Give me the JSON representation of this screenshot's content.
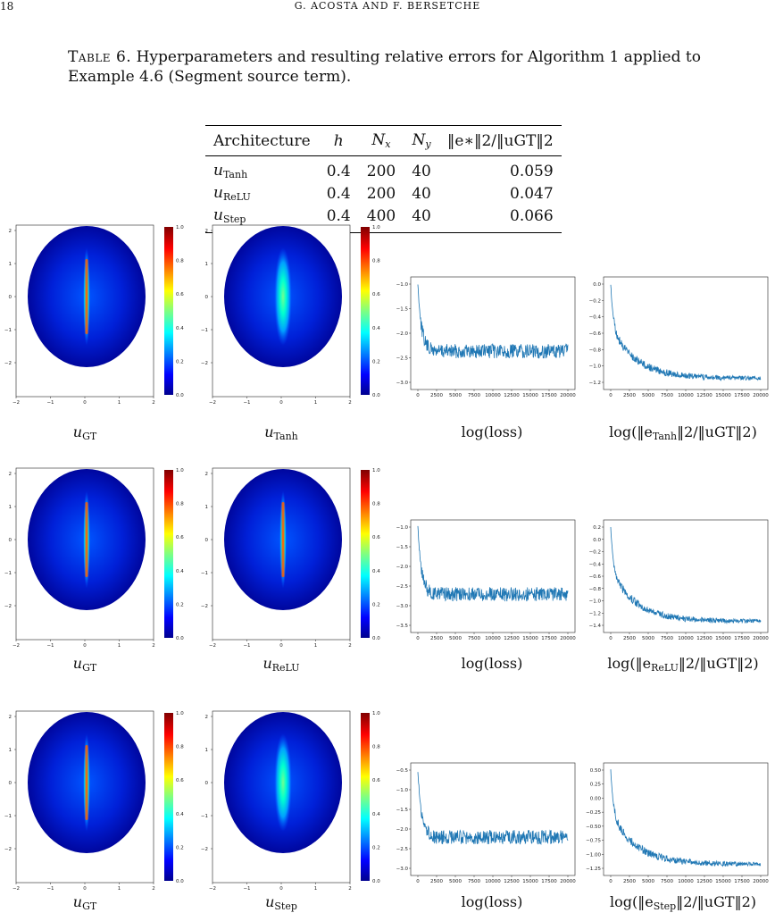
{
  "page_header": {
    "page_number": "18",
    "running_title": "G. ACOSTA AND F. BERSETCHE"
  },
  "caption": {
    "label": "Table 6.",
    "text": "Hyperparameters and resulting relative errors for Algorithm 1 applied to Example 4.6 (Segment source term)."
  },
  "table": {
    "headers": [
      "Architecture",
      "h",
      "N",
      "x",
      "N",
      "y",
      "‖e∗‖2/‖uGT‖2"
    ],
    "rows": [
      {
        "arch": "u",
        "arch_sub": "Tanh",
        "h": "0.4",
        "nx": "200",
        "ny": "40",
        "err": "0.059"
      },
      {
        "arch": "u",
        "arch_sub": "ReLU",
        "h": "0.4",
        "nx": "200",
        "ny": "40",
        "err": "0.047"
      },
      {
        "arch": "u",
        "arch_sub": "Step",
        "h": "0.4",
        "nx": "400",
        "ny": "40",
        "err": "0.066"
      }
    ]
  },
  "heatmap_ticks": {
    "x": [
      "−2",
      "−1",
      "0",
      "1",
      "2"
    ],
    "y": [
      "2",
      "1",
      "0",
      "−1",
      "−2"
    ]
  },
  "colorbar_ticks": [
    "1.0",
    "0.8",
    "0.6",
    "0.4",
    "0.2",
    "0.0"
  ],
  "loss_x_ticks": [
    "0",
    "2500",
    "5000",
    "7500",
    "10000",
    "12500",
    "15000",
    "17500",
    "20000"
  ],
  "rows": [
    {
      "labels": {
        "gt": "GT",
        "model": "Tanh",
        "loss": "log(loss)",
        "err_prefix": "log(‖e",
        "err_sub": "Tanh",
        "err_suffix": "‖2/‖uGT‖2)"
      },
      "model_intensity": 0.55,
      "loss_y_ticks": [
        "−1.0",
        "−1.5",
        "−2.0",
        "−2.5",
        "−3.0"
      ],
      "err_y_ticks": [
        "0.0",
        "−0.2",
        "−0.4",
        "−0.6",
        "−0.8",
        "−1.0",
        "−1.2"
      ]
    },
    {
      "labels": {
        "gt": "GT",
        "model": "ReLU",
        "loss": "log(loss)",
        "err_prefix": "log(‖e",
        "err_sub": "ReLU",
        "err_suffix": "‖2/‖uGT‖2)"
      },
      "model_intensity": 0.78,
      "loss_y_ticks": [
        "−1.0",
        "−1.5",
        "−2.0",
        "−2.5",
        "−3.0",
        "−3.5"
      ],
      "err_y_ticks": [
        "0.2",
        "0.0",
        "−0.2",
        "−0.4",
        "−0.6",
        "−0.8",
        "−1.0",
        "−1.2",
        "−1.4"
      ]
    },
    {
      "labels": {
        "gt": "GT",
        "model": "Step",
        "loss": "log(loss)",
        "err_prefix": "log(‖e",
        "err_sub": "Step",
        "err_suffix": "‖2/‖uGT‖2)"
      },
      "model_intensity": 0.55,
      "loss_y_ticks": [
        "−0.5",
        "−1.0",
        "−1.5",
        "−2.0",
        "−2.5",
        "−3.0"
      ],
      "err_y_ticks": [
        "0.50",
        "0.25",
        "0.00",
        "−0.25",
        "−0.50",
        "−0.75",
        "−1.00",
        "−1.25"
      ]
    }
  ],
  "colors": {
    "jet_low": "#00008f",
    "jet_mid": "#00ff80",
    "jet_high": "#800000",
    "line": "#1f77b4"
  }
}
